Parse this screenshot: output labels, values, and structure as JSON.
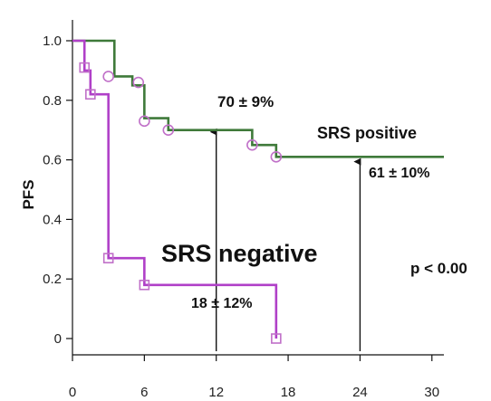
{
  "chart_data": {
    "type": "line",
    "ylabel": "PFS",
    "xlabel": "",
    "xlim": [
      0,
      31
    ],
    "ylim": [
      0,
      1.05
    ],
    "x_ticks": [
      "0",
      "6",
      "12",
      "18",
      "24",
      "30"
    ],
    "x_tick_values": [
      0,
      6,
      12,
      18,
      24,
      30
    ],
    "y_ticks": [
      "0",
      "0.2",
      "0.4",
      "0.6",
      "0.8",
      "1.0"
    ],
    "y_tick_values": [
      0,
      0.2,
      0.4,
      0.6,
      0.8,
      1.0
    ],
    "grid": false,
    "series": [
      {
        "name": "SRS positive",
        "color": "#3f7a3a",
        "step_x": [
          0,
          1.5,
          3.5,
          3.5,
          5,
          6,
          8,
          15,
          17,
          31
        ],
        "step_y": [
          1.0,
          1.0,
          0.88,
          0.88,
          0.85,
          0.74,
          0.7,
          0.65,
          0.61,
          0.61
        ],
        "censored_x": [
          3,
          5.5,
          6,
          8,
          15,
          17
        ],
        "censored_y": [
          0.88,
          0.86,
          0.73,
          0.7,
          0.65,
          0.61
        ]
      },
      {
        "name": "SRS negative",
        "color": "#b040c8",
        "step_x": [
          0,
          1,
          1.5,
          2,
          3,
          6,
          17,
          17
        ],
        "step_y": [
          1.0,
          0.9,
          0.82,
          0.82,
          0.27,
          0.18,
          0.18,
          0.0
        ],
        "censored_x": [
          1,
          1.5,
          3,
          6,
          17
        ],
        "censored_y": [
          0.91,
          0.82,
          0.27,
          0.18,
          0.0
        ]
      }
    ],
    "annotations": {
      "pos_12": "70 ± 9%",
      "srs_positive": "SRS positive",
      "pos_24": "61 ± 10%",
      "srs_negative": "SRS negative",
      "neg_12": "18 ± 12%",
      "pvalue": "p < 0.00"
    },
    "arrows": [
      {
        "x": 12,
        "y_from": 0.0,
        "y_to": 0.7
      },
      {
        "x": 24,
        "y_from": 0.0,
        "y_to": 0.6
      }
    ]
  }
}
